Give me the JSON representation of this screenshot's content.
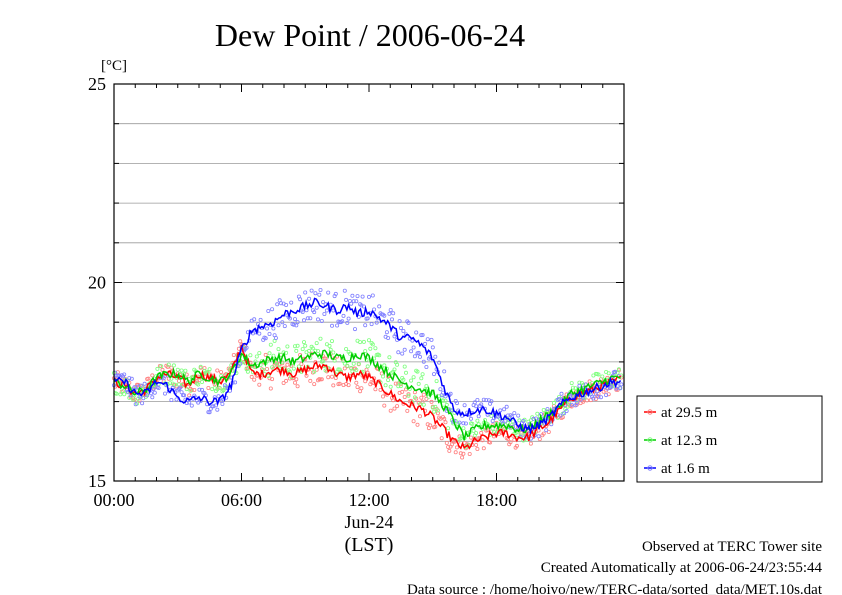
{
  "chart_data": {
    "type": "line",
    "title": "Dew Point / 2006-06-24",
    "ylabel": "[°C]",
    "xlabel": "(LST)",
    "date_label": "Jun-24",
    "ylim": [
      15,
      25
    ],
    "xlim_hours": [
      0,
      24
    ],
    "y_ticks": [
      "15",
      "20",
      "25"
    ],
    "x_ticks": [
      "00:00",
      "06:00",
      "12:00",
      "18:00"
    ],
    "grid": true,
    "legend_position": "right",
    "x_hours": [
      0,
      0.5,
      1,
      1.5,
      2,
      2.5,
      3,
      3.5,
      4,
      4.5,
      5,
      5.5,
      6,
      6.5,
      7,
      7.5,
      8,
      8.5,
      9,
      9.5,
      10,
      10.5,
      11,
      11.5,
      12,
      12.5,
      13,
      13.5,
      14,
      14.5,
      15,
      15.5,
      16,
      16.5,
      17,
      17.5,
      18,
      18.5,
      19,
      19.5,
      20,
      20.5,
      21,
      21.5,
      22,
      22.5,
      23,
      23.5,
      23.9
    ],
    "series": [
      {
        "name": "at 29.5 m",
        "color": "#ff0000",
        "scatter_color": "#ff8080",
        "values": [
          17.5,
          17.4,
          17.2,
          17.3,
          17.6,
          17.7,
          17.6,
          17.4,
          17.7,
          17.6,
          17.5,
          17.7,
          18.4,
          17.7,
          17.7,
          17.8,
          17.8,
          17.7,
          17.8,
          17.9,
          17.9,
          17.7,
          17.6,
          17.7,
          17.6,
          17.4,
          17.2,
          17.0,
          16.9,
          16.8,
          16.6,
          16.3,
          16.0,
          15.8,
          16.0,
          16.1,
          16.2,
          16.2,
          16.1,
          16.1,
          16.3,
          16.5,
          16.8,
          17.1,
          17.2,
          17.3,
          17.4,
          17.5,
          17.6
        ]
      },
      {
        "name": "at 12.3 m",
        "color": "#00cc00",
        "scatter_color": "#7fff7f",
        "values": [
          17.5,
          17.4,
          17.2,
          17.3,
          17.6,
          17.7,
          17.7,
          17.5,
          17.7,
          17.6,
          17.5,
          17.7,
          18.2,
          17.9,
          18.0,
          18.1,
          18.1,
          18.0,
          18.1,
          18.2,
          18.2,
          18.1,
          18.1,
          18.2,
          18.1,
          17.9,
          17.7,
          17.5,
          17.4,
          17.3,
          17.2,
          16.9,
          16.5,
          16.1,
          16.3,
          16.4,
          16.4,
          16.4,
          16.3,
          16.3,
          16.5,
          16.7,
          16.9,
          17.2,
          17.3,
          17.4,
          17.5,
          17.6,
          17.6
        ]
      },
      {
        "name": "at 1.6 m",
        "color": "#0000ff",
        "scatter_color": "#8080ff",
        "values": [
          17.5,
          17.5,
          17.2,
          17.2,
          17.5,
          17.4,
          17.1,
          17.0,
          17.1,
          17.0,
          17.0,
          17.4,
          18.3,
          18.8,
          18.9,
          19.0,
          19.2,
          19.3,
          19.4,
          19.5,
          19.4,
          19.3,
          19.4,
          19.2,
          19.3,
          19.1,
          18.9,
          18.6,
          18.6,
          18.4,
          18.1,
          17.4,
          16.8,
          16.7,
          16.8,
          16.8,
          16.7,
          16.6,
          16.4,
          16.3,
          16.4,
          16.6,
          16.9,
          17.1,
          17.2,
          17.3,
          17.4,
          17.5,
          17.5
        ]
      }
    ]
  },
  "footer": {
    "line1": "Observed at TERC Tower site",
    "line2": "Created Automatically at 2006-06-24/23:55:44",
    "line3": "Data source : /home/hoivo/new/TERC-data/sorted_data/MET.10s.dat"
  }
}
